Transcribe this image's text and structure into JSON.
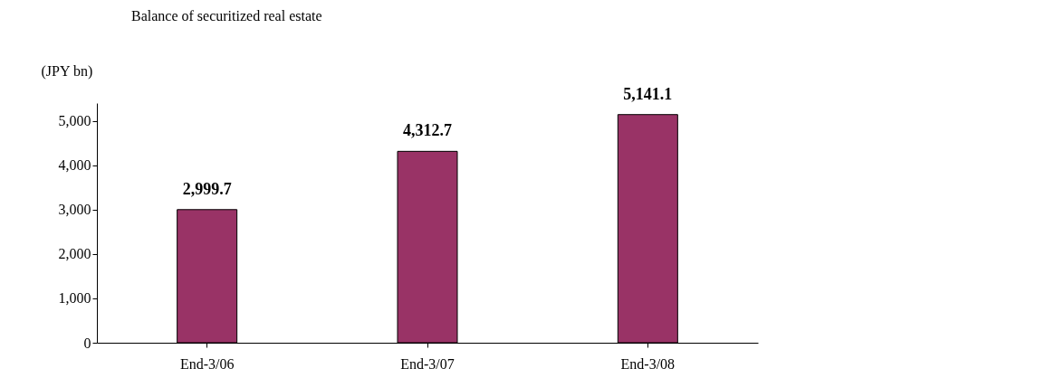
{
  "chart_data": {
    "type": "bar",
    "title": "Balance of securitized real estate",
    "ylabel": "(JPY bn)",
    "categories": [
      "End-3/06",
      "End-3/07",
      "End-3/08"
    ],
    "values": [
      2999.7,
      4312.7,
      5141.1
    ],
    "value_labels": [
      "2,999.7",
      "4,312.7",
      "5,141.1"
    ],
    "color": "#993366",
    "ylim": [
      0,
      5400
    ],
    "yticks": [
      0,
      {
        "value": 1000,
        "label": "1,000"
      },
      {
        "value": 2000,
        "label": "2,000"
      },
      {
        "value": 3000,
        "label": "3,000"
      },
      {
        "value": 4000,
        "label": "4,000"
      },
      {
        "value": 5000,
        "label": "5,000"
      }
    ],
    "grid": false
  }
}
